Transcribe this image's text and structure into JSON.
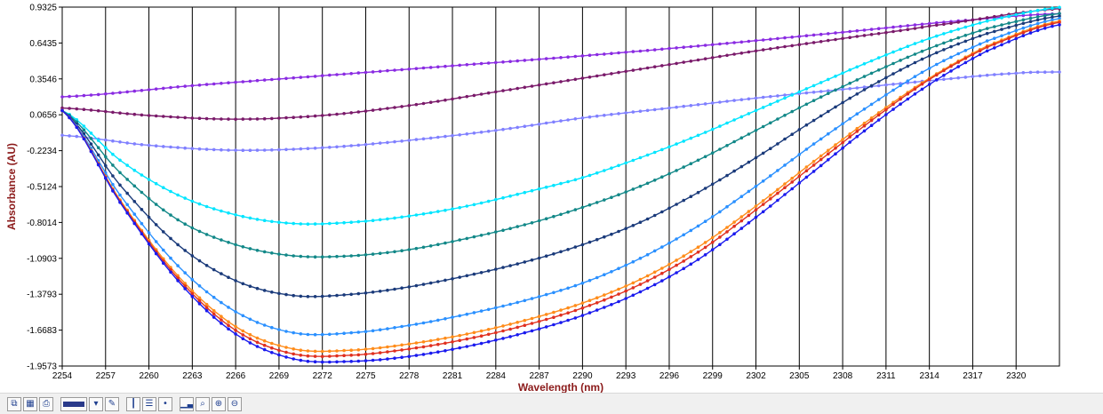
{
  "chart_data": {
    "type": "line",
    "xlabel": "Wavelength (nm)",
    "ylabel": "Absorbance (AU)",
    "xlim": [
      2254,
      2323
    ],
    "ylim": [
      -1.9573,
      0.9325
    ],
    "x_ticks": [
      "2254",
      "2257",
      "2260",
      "2263",
      "2266",
      "2269",
      "2272",
      "2275",
      "2278",
      "2281",
      "2284",
      "2287",
      "2290",
      "2293",
      "2296",
      "2299",
      "2302",
      "2305",
      "2308",
      "2311",
      "2314",
      "2317",
      "2320"
    ],
    "y_ticks": [
      "0.9325",
      "0.6435",
      "0.3546",
      "0.0656",
      "-0.2234",
      "-0.5124",
      "-0.8014",
      "-1.0903",
      "-1.3793",
      "-1.6683",
      "-1.9573"
    ],
    "grid": "vertical",
    "legend": "none",
    "series": [
      {
        "color": "#8a2be2",
        "x": [
          2254,
          2263,
          2272,
          2281,
          2290,
          2299,
          2308,
          2317,
          2323
        ],
        "y": [
          0.21,
          0.3,
          0.38,
          0.46,
          0.54,
          0.63,
          0.73,
          0.83,
          0.88
        ]
      },
      {
        "color": "#7a1a6a",
        "x": [
          2254,
          2260,
          2266,
          2272,
          2278,
          2284,
          2290,
          2296,
          2302,
          2308,
          2314,
          2323
        ],
        "y": [
          0.12,
          0.06,
          0.03,
          0.06,
          0.14,
          0.25,
          0.36,
          0.47,
          0.58,
          0.68,
          0.78,
          0.92
        ]
      },
      {
        "color": "#8080ff",
        "x": [
          2254,
          2260,
          2266,
          2272,
          2278,
          2284,
          2290,
          2296,
          2302,
          2308,
          2314,
          2320,
          2323
        ],
        "y": [
          -0.1,
          -0.18,
          -0.22,
          -0.2,
          -0.14,
          -0.06,
          0.04,
          0.12,
          0.2,
          0.27,
          0.34,
          0.4,
          0.41
        ]
      },
      {
        "color": "#00e5ff",
        "x": [
          2254,
          2258,
          2262,
          2266,
          2270,
          2274,
          2278,
          2282,
          2286,
          2290,
          2294,
          2298,
          2302,
          2306,
          2310,
          2314,
          2318,
          2323
        ],
        "y": [
          0.1,
          -0.3,
          -0.58,
          -0.74,
          -0.81,
          -0.8,
          -0.75,
          -0.67,
          -0.56,
          -0.44,
          -0.28,
          -0.1,
          0.1,
          0.3,
          0.5,
          0.68,
          0.82,
          0.93
        ]
      },
      {
        "color": "#128888",
        "x": [
          2254,
          2258,
          2262,
          2266,
          2270,
          2274,
          2278,
          2282,
          2286,
          2290,
          2294,
          2298,
          2302,
          2306,
          2310,
          2314,
          2318,
          2323
        ],
        "y": [
          0.1,
          -0.4,
          -0.78,
          -0.98,
          -1.07,
          -1.07,
          -1.02,
          -0.93,
          -0.82,
          -0.68,
          -0.51,
          -0.3,
          -0.06,
          0.18,
          0.4,
          0.6,
          0.76,
          0.88
        ]
      },
      {
        "color": "#1a3a7a",
        "x": [
          2254,
          2258,
          2262,
          2266,
          2270,
          2274,
          2278,
          2282,
          2286,
          2290,
          2294,
          2298,
          2302,
          2306,
          2310,
          2314,
          2318,
          2323
        ],
        "y": [
          0.1,
          -0.5,
          -0.98,
          -1.27,
          -1.39,
          -1.38,
          -1.32,
          -1.23,
          -1.12,
          -0.98,
          -0.8,
          -0.56,
          -0.28,
          0.02,
          0.3,
          0.54,
          0.72,
          0.86
        ]
      },
      {
        "color": "#2a90ff",
        "x": [
          2254,
          2258,
          2262,
          2266,
          2270,
          2274,
          2278,
          2282,
          2286,
          2290,
          2294,
          2298,
          2302,
          2306,
          2310,
          2314,
          2318,
          2323
        ],
        "y": [
          0.1,
          -0.58,
          -1.15,
          -1.52,
          -1.69,
          -1.69,
          -1.63,
          -1.54,
          -1.43,
          -1.29,
          -1.09,
          -0.83,
          -0.51,
          -0.17,
          0.15,
          0.44,
          0.66,
          0.84
        ]
      },
      {
        "color": "#ff8c1a",
        "x": [
          2254,
          2258,
          2262,
          2266,
          2270,
          2274,
          2278,
          2282,
          2286,
          2290,
          2294,
          2298,
          2302,
          2306,
          2310,
          2314,
          2318,
          2323
        ],
        "y": [
          0.1,
          -0.62,
          -1.23,
          -1.64,
          -1.82,
          -1.83,
          -1.78,
          -1.7,
          -1.59,
          -1.45,
          -1.26,
          -1.0,
          -0.67,
          -0.31,
          0.04,
          0.36,
          0.62,
          0.82
        ]
      },
      {
        "color": "#e03020",
        "x": [
          2254,
          2258,
          2262,
          2266,
          2270,
          2274,
          2278,
          2282,
          2286,
          2290,
          2294,
          2298,
          2302,
          2306,
          2310,
          2314,
          2318,
          2323
        ],
        "y": [
          0.1,
          -0.63,
          -1.25,
          -1.67,
          -1.86,
          -1.87,
          -1.82,
          -1.74,
          -1.63,
          -1.49,
          -1.3,
          -1.04,
          -0.7,
          -0.34,
          0.02,
          0.35,
          0.61,
          0.81
        ]
      },
      {
        "color": "#1a1aee",
        "x": [
          2254,
          2258,
          2262,
          2266,
          2270,
          2274,
          2278,
          2282,
          2286,
          2290,
          2294,
          2298,
          2302,
          2306,
          2310,
          2314,
          2318,
          2323
        ],
        "y": [
          0.1,
          -0.64,
          -1.27,
          -1.7,
          -1.9,
          -1.92,
          -1.88,
          -1.8,
          -1.69,
          -1.55,
          -1.36,
          -1.1,
          -0.76,
          -0.39,
          -0.02,
          0.31,
          0.58,
          0.79
        ]
      }
    ]
  },
  "toolbar": {
    "buttons": [
      {
        "icon": "copy-icon"
      },
      {
        "icon": "grid-select-icon"
      },
      {
        "icon": "print-icon"
      },
      {
        "icon": "line-color-icon"
      },
      {
        "icon": "line-style-icon"
      },
      {
        "icon": "pen-icon"
      },
      {
        "icon": "vertical-grid-icon"
      },
      {
        "icon": "horizontal-grid-icon"
      },
      {
        "icon": "data-point-icon"
      },
      {
        "icon": "bar-chart-icon"
      },
      {
        "icon": "zoom-icon"
      },
      {
        "icon": "zoom-in-icon"
      },
      {
        "icon": "zoom-out-icon"
      }
    ]
  }
}
